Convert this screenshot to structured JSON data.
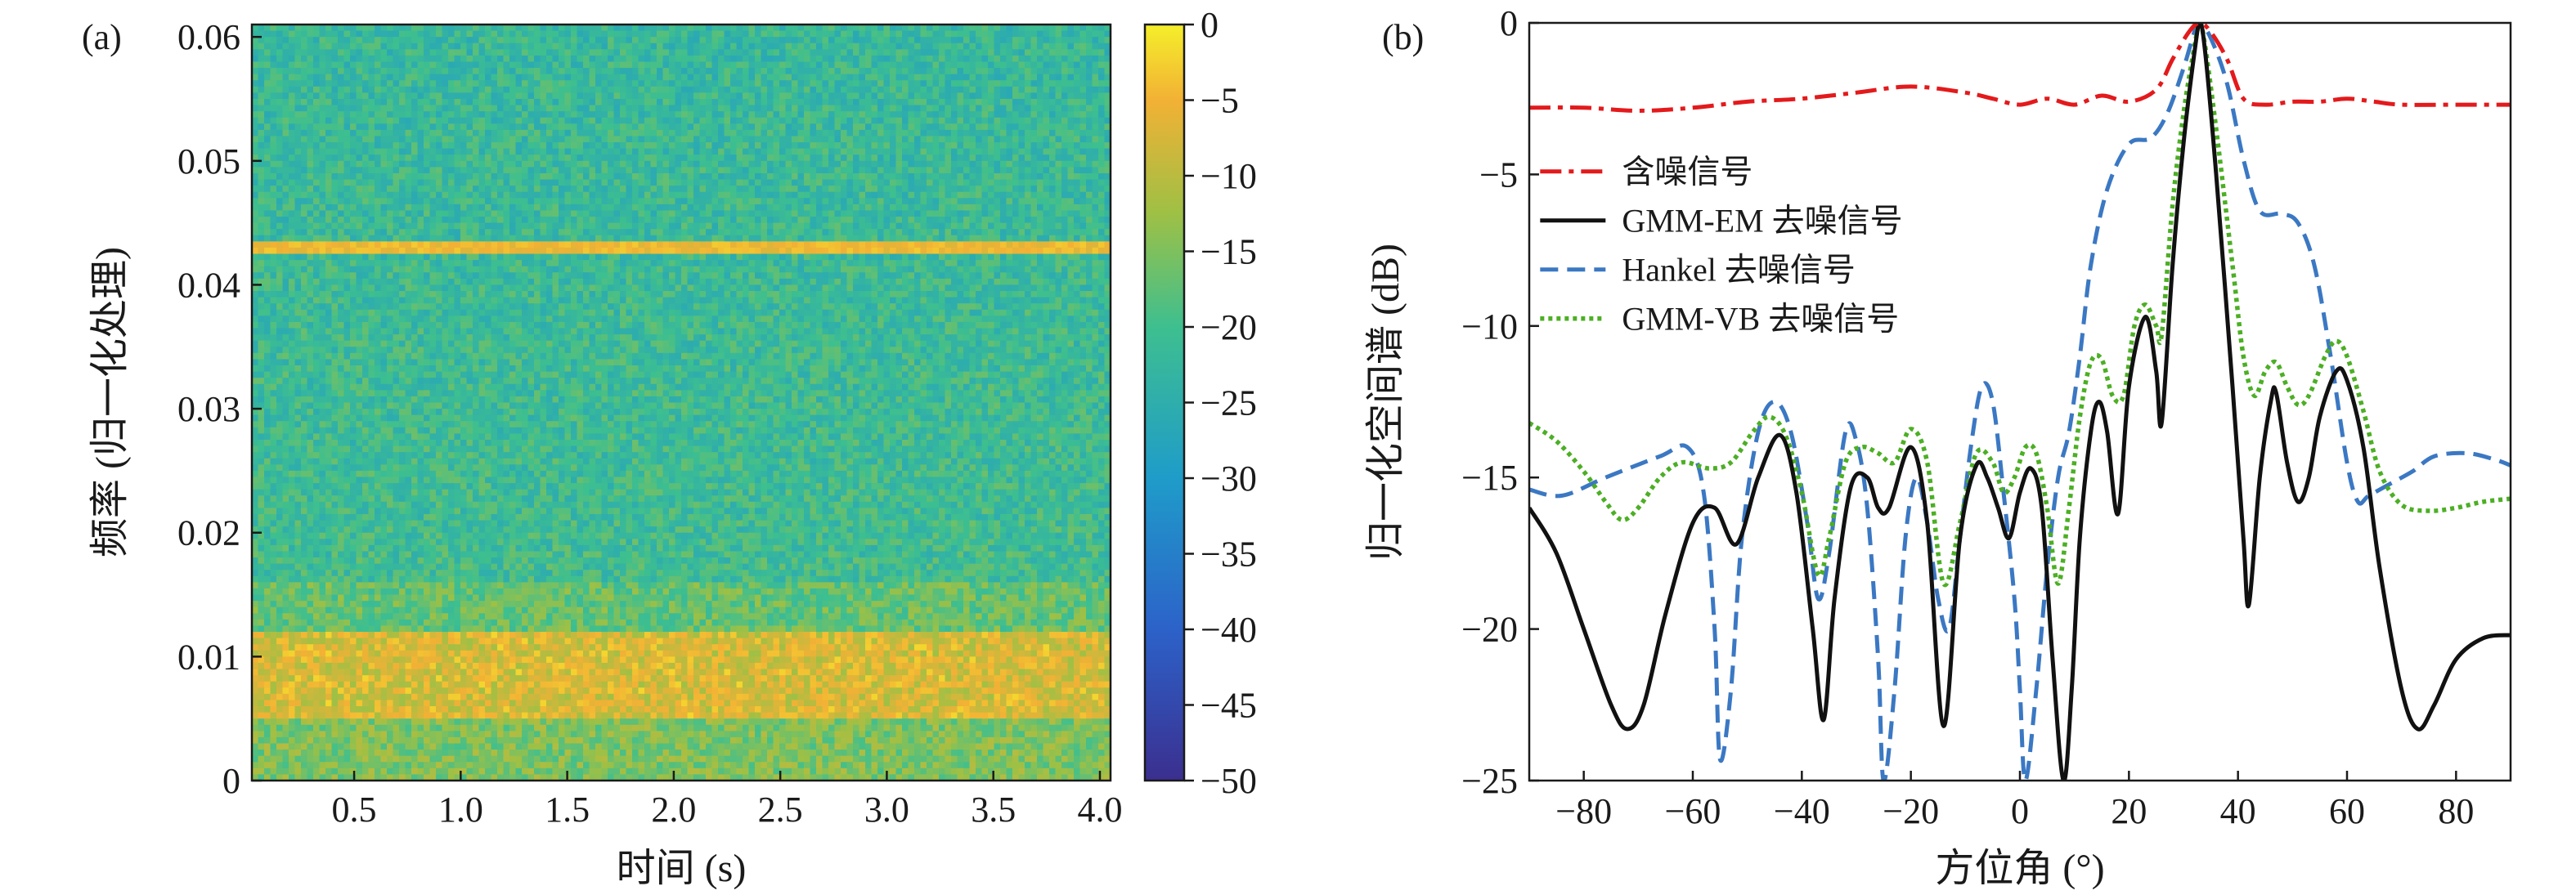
{
  "colors": {
    "noisy": "#e31a1c",
    "gmm_em": "#111111",
    "hankel": "#3b78c3",
    "gmm_vb": "#4caf24"
  },
  "chart_data": [
    {
      "type": "heatmap",
      "panel_label": "(a)",
      "xlabel": "时间 (s)",
      "ylabel": "频率 (归一化处理)",
      "xlim": [
        0.02,
        4.05
      ],
      "ylim": [
        0,
        0.061
      ],
      "xticks": [
        "0.5",
        "1.0",
        "1.5",
        "2.0",
        "2.5",
        "3.0",
        "3.5",
        "4.0"
      ],
      "yticks": [
        "0",
        "0.01",
        "0.02",
        "0.03",
        "0.04",
        "0.05",
        "0.06"
      ],
      "colorbar": {
        "range": [
          -50,
          0
        ],
        "ticks": [
          "0",
          "−5",
          "−10",
          "−15",
          "−20",
          "−25",
          "−30",
          "−35",
          "−40",
          "−45",
          "−50"
        ]
      },
      "features": [
        {
          "kind": "narrowband line",
          "freq": 0.043,
          "level_db": -3
        },
        {
          "kind": "broadband band",
          "freq_range": [
            0.005,
            0.012
          ],
          "level_db": -8
        },
        {
          "kind": "background",
          "level_db": -20
        }
      ]
    },
    {
      "type": "line",
      "panel_label": "(b)",
      "xlabel": "方位角 (°)",
      "ylabel": "归一化空间谱 (dB)",
      "xlim": [
        -90,
        90
      ],
      "ylim": [
        -25,
        0
      ],
      "xticks": [
        "−80",
        "−60",
        "−40",
        "−20",
        "0",
        "20",
        "40",
        "60",
        "80"
      ],
      "yticks": [
        "0",
        "−5",
        "−10",
        "−15",
        "−20",
        "−25"
      ],
      "legend_position": "upper-left",
      "series": [
        {
          "name": "含噪信号",
          "style": "dashdot",
          "points": [
            [
              -90,
              -2.8
            ],
            [
              -80,
              -2.8
            ],
            [
              -70,
              -2.9
            ],
            [
              -60,
              -2.8
            ],
            [
              -50,
              -2.6
            ],
            [
              -40,
              -2.5
            ],
            [
              -30,
              -2.3
            ],
            [
              -20,
              -2.1
            ],
            [
              -10,
              -2.3
            ],
            [
              -5,
              -2.5
            ],
            [
              0,
              -2.7
            ],
            [
              5,
              -2.5
            ],
            [
              10,
              -2.7
            ],
            [
              15,
              -2.4
            ],
            [
              20,
              -2.6
            ],
            [
              25,
              -2.2
            ],
            [
              28,
              -1.2
            ],
            [
              31,
              -0.3
            ],
            [
              33,
              0
            ],
            [
              35,
              -0.3
            ],
            [
              38,
              -1.2
            ],
            [
              41,
              -2.5
            ],
            [
              45,
              -2.7
            ],
            [
              50,
              -2.6
            ],
            [
              55,
              -2.6
            ],
            [
              60,
              -2.5
            ],
            [
              65,
              -2.6
            ],
            [
              70,
              -2.7
            ],
            [
              80,
              -2.7
            ],
            [
              90,
              -2.7
            ]
          ]
        },
        {
          "name": "GMM-EM 去噪信号",
          "style": "solid",
          "points": [
            [
              -90,
              -16
            ],
            [
              -85,
              -17.5
            ],
            [
              -80,
              -20
            ],
            [
              -75,
              -22.5
            ],
            [
              -72,
              -23.3
            ],
            [
              -69,
              -22.5
            ],
            [
              -65,
              -19.5
            ],
            [
              -60,
              -16.5
            ],
            [
              -56,
              -16
            ],
            [
              -52,
              -17.2
            ],
            [
              -48,
              -15
            ],
            [
              -44,
              -13.6
            ],
            [
              -41,
              -15.5
            ],
            [
              -38,
              -20
            ],
            [
              -36,
              -23
            ],
            [
              -34,
              -19
            ],
            [
              -31,
              -15.3
            ],
            [
              -28,
              -15
            ],
            [
              -26,
              -16
            ],
            [
              -24,
              -16
            ],
            [
              -20,
              -14
            ],
            [
              -17,
              -16.5
            ],
            [
              -14,
              -23.2
            ],
            [
              -11,
              -17
            ],
            [
              -8,
              -14.6
            ],
            [
              -6,
              -15
            ],
            [
              -4,
              -16
            ],
            [
              -2,
              -17
            ],
            [
              0,
              -15.5
            ],
            [
              2,
              -14.7
            ],
            [
              4,
              -16
            ],
            [
              6,
              -21
            ],
            [
              8,
              -25
            ],
            [
              9.5,
              -22
            ],
            [
              11,
              -17
            ],
            [
              13,
              -13.5
            ],
            [
              14.5,
              -12.5
            ],
            [
              16,
              -13.5
            ],
            [
              18,
              -16.2
            ],
            [
              20,
              -12
            ],
            [
              23,
              -9.7
            ],
            [
              25,
              -11.5
            ],
            [
              26,
              -13.2
            ],
            [
              28,
              -8
            ],
            [
              30,
              -4
            ],
            [
              32,
              -1
            ],
            [
              33,
              0
            ],
            [
              34,
              -1
            ],
            [
              36,
              -5
            ],
            [
              39,
              -12
            ],
            [
              41,
              -17
            ],
            [
              42,
              -19.2
            ],
            [
              44,
              -15
            ],
            [
              46,
              -12.5
            ],
            [
              47,
              -12.2
            ],
            [
              49,
              -14.5
            ],
            [
              51,
              -15.8
            ],
            [
              53,
              -15
            ],
            [
              55,
              -13
            ],
            [
              58,
              -11.5
            ],
            [
              60,
              -11.8
            ],
            [
              63,
              -14
            ],
            [
              66,
              -18
            ],
            [
              70,
              -22
            ],
            [
              73,
              -23.3
            ],
            [
              76,
              -22.5
            ],
            [
              80,
              -21
            ],
            [
              85,
              -20.3
            ],
            [
              90,
              -20.2
            ]
          ]
        },
        {
          "name": "Hankel 去噪信号",
          "style": "dashed",
          "points": [
            [
              -90,
              -15.4
            ],
            [
              -84,
              -15.6
            ],
            [
              -76,
              -15
            ],
            [
              -66,
              -14.3
            ],
            [
              -61,
              -14
            ],
            [
              -58,
              -15.5
            ],
            [
              -56,
              -20
            ],
            [
              -55,
              -24.3
            ],
            [
              -53,
              -22
            ],
            [
              -51,
              -17
            ],
            [
              -48,
              -13.5
            ],
            [
              -45,
              -12.5
            ],
            [
              -42,
              -13.5
            ],
            [
              -39,
              -16.5
            ],
            [
              -37,
              -19
            ],
            [
              -35,
              -17.5
            ],
            [
              -32,
              -13.5
            ],
            [
              -30,
              -13.8
            ],
            [
              -28,
              -16
            ],
            [
              -26,
              -21
            ],
            [
              -25,
              -25
            ],
            [
              -23,
              -22
            ],
            [
              -21,
              -17
            ],
            [
              -19,
              -15
            ],
            [
              -17,
              -16.5
            ],
            [
              -15,
              -19
            ],
            [
              -13,
              -20
            ],
            [
              -11,
              -17
            ],
            [
              -9,
              -14
            ],
            [
              -7,
              -12
            ],
            [
              -5,
              -12.5
            ],
            [
              -3,
              -15.5
            ],
            [
              -1,
              -19
            ],
            [
              0,
              -22
            ],
            [
              1,
              -25
            ],
            [
              3,
              -22
            ],
            [
              5,
              -18
            ],
            [
              7,
              -15
            ],
            [
              9,
              -13.5
            ],
            [
              11,
              -11
            ],
            [
              13,
              -8
            ],
            [
              16,
              -5.5
            ],
            [
              20,
              -4
            ],
            [
              24,
              -3.8
            ],
            [
              27,
              -3
            ],
            [
              30,
              -1.5
            ],
            [
              32,
              -0.3
            ],
            [
              33,
              0
            ],
            [
              35,
              -0.5
            ],
            [
              38,
              -2
            ],
            [
              41,
              -4.5
            ],
            [
              44,
              -6.2
            ],
            [
              48,
              -6.3
            ],
            [
              51,
              -6.6
            ],
            [
              54,
              -8
            ],
            [
              57,
              -11
            ],
            [
              60,
              -14.5
            ],
            [
              62,
              -15.8
            ],
            [
              64,
              -15.6
            ],
            [
              68,
              -15.2
            ],
            [
              72,
              -14.8
            ],
            [
              76,
              -14.3
            ],
            [
              82,
              -14.2
            ],
            [
              87,
              -14.4
            ],
            [
              90,
              -14.6
            ]
          ]
        },
        {
          "name": "GMM-VB 去噪信号",
          "style": "dotted",
          "points": [
            [
              -90,
              -13.2
            ],
            [
              -85,
              -13.8
            ],
            [
              -80,
              -14.8
            ],
            [
              -76,
              -15.8
            ],
            [
              -73,
              -16.4
            ],
            [
              -70,
              -16
            ],
            [
              -66,
              -15
            ],
            [
              -62,
              -14.5
            ],
            [
              -57,
              -14.7
            ],
            [
              -53,
              -14.5
            ],
            [
              -49,
              -13.5
            ],
            [
              -46,
              -13
            ],
            [
              -43,
              -13.6
            ],
            [
              -40,
              -15.5
            ],
            [
              -37,
              -18.2
            ],
            [
              -35,
              -17
            ],
            [
              -32,
              -14.5
            ],
            [
              -29,
              -14
            ],
            [
              -26,
              -14.2
            ],
            [
              -23,
              -14.5
            ],
            [
              -20,
              -13.4
            ],
            [
              -17,
              -14.5
            ],
            [
              -14,
              -18.5
            ],
            [
              -11,
              -16.5
            ],
            [
              -8,
              -14.2
            ],
            [
              -5,
              -14.5
            ],
            [
              -3,
              -15.5
            ],
            [
              -1,
              -15
            ],
            [
              1,
              -14
            ],
            [
              3,
              -14.2
            ],
            [
              5,
              -16
            ],
            [
              7,
              -18.5
            ],
            [
              9,
              -16
            ],
            [
              11,
              -13
            ],
            [
              13,
              -11.2
            ],
            [
              15,
              -11.1
            ],
            [
              17,
              -12.3
            ],
            [
              19,
              -12.3
            ],
            [
              21,
              -10
            ],
            [
              23,
              -9.3
            ],
            [
              25,
              -10
            ],
            [
              26,
              -10.3
            ],
            [
              28,
              -6
            ],
            [
              30,
              -3
            ],
            [
              32,
              -0.8
            ],
            [
              33,
              0
            ],
            [
              34,
              -0.8
            ],
            [
              36,
              -3.5
            ],
            [
              39,
              -8
            ],
            [
              41,
              -11
            ],
            [
              43,
              -12.3
            ],
            [
              45,
              -11.5
            ],
            [
              47,
              -11.2
            ],
            [
              49,
              -12
            ],
            [
              51,
              -12.6
            ],
            [
              53,
              -12.3
            ],
            [
              56,
              -11
            ],
            [
              58,
              -10.5
            ],
            [
              60,
              -11
            ],
            [
              63,
              -12.8
            ],
            [
              66,
              -14.8
            ],
            [
              70,
              -15.9
            ],
            [
              75,
              -16.1
            ],
            [
              80,
              -16
            ],
            [
              85,
              -15.8
            ],
            [
              90,
              -15.7
            ]
          ]
        }
      ]
    }
  ]
}
